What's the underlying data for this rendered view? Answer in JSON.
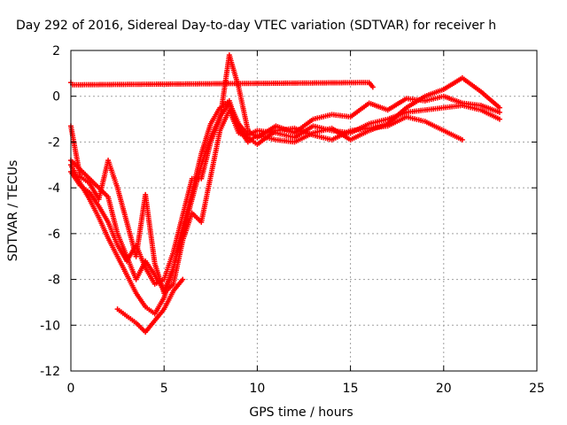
{
  "chart_data": {
    "type": "scatter",
    "title": "Day 292 of 2016, Sidereal Day-to-day VTEC variation (SDTVAR) for receiver h",
    "xlabel": "GPS time / hours",
    "ylabel": "SDTVAR / TECUs",
    "xlim": [
      0,
      25
    ],
    "ylim": [
      -12,
      2
    ],
    "xticks": [
      "0",
      "5",
      "10",
      "15",
      "20",
      "25"
    ],
    "yticks": [
      "-12",
      "-10",
      "-8",
      "-6",
      "-4",
      "-2",
      "0",
      "2"
    ],
    "grid": true,
    "marker": "plus",
    "color": "#ff0000",
    "series": [
      {
        "x": [
          0.0,
          0.5,
          1.0,
          1.5,
          2.0,
          2.5,
          3.0,
          3.5,
          4.0,
          4.5,
          5.0,
          5.5,
          6.0,
          6.5,
          7.0,
          7.5,
          8.0,
          8.5,
          9.0,
          9.5,
          10.0,
          11.0,
          12.0,
          13.0,
          14.0,
          15.0,
          16.0,
          17.0,
          18.0,
          19.0,
          20.0,
          21.0,
          22.0,
          23.0
        ],
        "y": [
          -2.8,
          -3.2,
          -3.6,
          -4.0,
          -4.4,
          -6.0,
          -7.0,
          -8.0,
          -7.2,
          -7.8,
          -8.5,
          -7.5,
          -6.0,
          -4.5,
          -3.0,
          -1.8,
          -0.9,
          -0.3,
          -1.2,
          -1.7,
          -1.5,
          -1.6,
          -1.8,
          -1.3,
          -1.5,
          -1.6,
          -1.2,
          -1.0,
          -0.7,
          -0.6,
          -0.5,
          -0.4,
          -0.6,
          -1.0
        ]
      },
      {
        "x": [
          0.0,
          0.5,
          1.0,
          1.5,
          2.0,
          2.5,
          3.0,
          3.5,
          4.0,
          4.5,
          5.0,
          5.5,
          6.0,
          6.5,
          7.0,
          7.5,
          8.0,
          8.5,
          9.0,
          9.5,
          10.0,
          11.0,
          12.0,
          13.0,
          14.0,
          15.0,
          16.0,
          17.0,
          18.0,
          19.0,
          20.0,
          21.0,
          22.0,
          23.0
        ],
        "y": [
          -3.0,
          -3.8,
          -4.5,
          -5.3,
          -6.2,
          -7.0,
          -7.8,
          -8.6,
          -9.2,
          -9.5,
          -8.8,
          -7.5,
          -5.8,
          -4.2,
          -2.5,
          -1.2,
          -0.5,
          -0.2,
          -1.4,
          -2.0,
          -1.7,
          -1.9,
          -2.0,
          -1.6,
          -1.4,
          -1.9,
          -1.5,
          -1.2,
          -0.5,
          0.0,
          0.3,
          0.8,
          0.2,
          -0.5
        ]
      },
      {
        "x": [
          0.0,
          0.5,
          1.0,
          1.5,
          2.0,
          2.5,
          3.0,
          3.5,
          4.0,
          4.5,
          5.0,
          5.5,
          6.0,
          6.5,
          7.0,
          7.5,
          8.0,
          8.5,
          9.0,
          9.5,
          10.0,
          11.0,
          12.0,
          13.0,
          14.0,
          15.0,
          16.0,
          17.0,
          18.0,
          19.0,
          20.0,
          21.0,
          22.0,
          23.0
        ],
        "y": [
          -3.3,
          -3.9,
          -4.2,
          -4.8,
          -5.5,
          -6.5,
          -7.2,
          -6.5,
          -7.5,
          -8.2,
          -8.0,
          -6.8,
          -5.2,
          -3.6,
          -3.6,
          -2.0,
          -1.0,
          1.8,
          0.4,
          -1.5,
          -1.8,
          -1.3,
          -1.6,
          -1.0,
          -0.8,
          -0.9,
          -0.3,
          -0.6,
          -0.1,
          -0.2,
          0.0,
          -0.3,
          -0.4,
          -0.7
        ]
      },
      {
        "x": [
          0.0,
          0.5,
          1.0,
          1.5,
          2.0,
          2.5,
          3.0,
          3.5,
          4.0,
          4.5,
          5.0,
          5.5,
          6.0,
          6.5,
          7.0,
          7.5,
          8.0,
          8.5,
          9.0,
          9.5,
          10.0,
          11.0,
          12.0,
          13.0,
          14.0,
          15.0,
          16.0,
          17.0,
          18.0,
          19.0,
          20.0,
          21.0
        ],
        "y": [
          -1.3,
          -3.5,
          -3.8,
          -4.5,
          -2.8,
          -4.0,
          -5.5,
          -7.0,
          -4.3,
          -7.3,
          -8.6,
          -8.2,
          -6.3,
          -5.1,
          -5.5,
          -3.5,
          -1.5,
          -0.6,
          -1.6,
          -1.8,
          -2.1,
          -1.5,
          -1.4,
          -1.7,
          -1.9,
          -1.5,
          -1.4,
          -1.3,
          -0.9,
          -1.1,
          -1.5,
          -1.9
        ]
      },
      {
        "x": [
          2.5,
          3.0,
          3.5,
          4.0,
          4.5,
          5.0,
          5.5,
          6.0
        ],
        "y": [
          -9.3,
          -9.6,
          -9.9,
          -10.3,
          -9.8,
          -9.3,
          -8.5,
          -8.0
        ]
      },
      {
        "x": [
          0.0,
          0.1,
          16.0,
          16.2
        ],
        "y": [
          0.6,
          0.5,
          0.6,
          0.4
        ]
      }
    ]
  }
}
